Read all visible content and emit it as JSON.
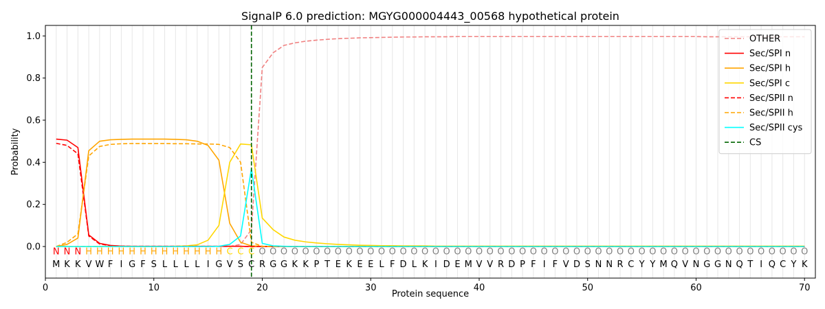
{
  "chart_data": {
    "type": "line",
    "title": "SignalP 6.0 prediction: MGYG000004443_00568 hypothetical protein",
    "xlabel": "Protein sequence",
    "ylabel": "Probability",
    "xlim": [
      0,
      71
    ],
    "ylim": [
      -0.15,
      1.05
    ],
    "xticks": [
      0,
      10,
      20,
      30,
      40,
      50,
      60,
      70
    ],
    "yticks": [
      0.0,
      0.2,
      0.4,
      0.6,
      0.8,
      1.0
    ],
    "grid": "vertical lines at every residue position",
    "legend_position": "top-right",
    "cleavage_site": 19,
    "x": [
      1,
      2,
      3,
      4,
      5,
      6,
      7,
      8,
      9,
      10,
      11,
      12,
      13,
      14,
      15,
      16,
      17,
      18,
      19,
      20,
      21,
      22,
      23,
      24,
      25,
      26,
      27,
      28,
      29,
      30,
      31,
      32,
      33,
      34,
      35,
      36,
      37,
      38,
      39,
      40,
      41,
      42,
      43,
      44,
      45,
      46,
      47,
      48,
      49,
      50,
      51,
      52,
      53,
      54,
      55,
      56,
      57,
      58,
      59,
      60,
      61,
      62,
      63,
      64,
      65,
      66,
      67,
      68,
      69,
      70
    ],
    "sequence": [
      "M",
      "K",
      "K",
      "V",
      "W",
      "F",
      "I",
      "G",
      "F",
      "S",
      "L",
      "L",
      "L",
      "L",
      "I",
      "G",
      "V",
      "S",
      "C",
      "R",
      "G",
      "G",
      "K",
      "K",
      "P",
      "T",
      "E",
      "K",
      "E",
      "E",
      "L",
      "F",
      "D",
      "L",
      "K",
      "I",
      "D",
      "E",
      "M",
      "V",
      "V",
      "R",
      "D",
      "P",
      "F",
      "I",
      "F",
      "V",
      "D",
      "S",
      "N",
      "N",
      "R",
      "C",
      "Y",
      "Y",
      "M",
      "Q",
      "V",
      "N",
      "G",
      "G",
      "N",
      "Q",
      "T",
      "I",
      "Q",
      "C",
      "Y",
      "K"
    ],
    "region_labels": [
      "N",
      "N",
      "N",
      "H",
      "H",
      "H",
      "H",
      "H",
      "H",
      "H",
      "H",
      "H",
      "H",
      "H",
      "H",
      "H",
      "C",
      "C",
      "C",
      "O",
      "O",
      "O",
      "O",
      "O",
      "O",
      "O",
      "O",
      "O",
      "O",
      "O",
      "O",
      "O",
      "O",
      "O",
      "O",
      "O",
      "O",
      "O",
      "O",
      "O",
      "O",
      "O",
      "O",
      "O",
      "O",
      "O",
      "O",
      "O",
      "O",
      "O",
      "O",
      "O",
      "O",
      "O",
      "O",
      "O",
      "O",
      "O",
      "O",
      "O",
      "O",
      "O",
      "O",
      "O",
      "O",
      "O",
      "O",
      "O",
      "O",
      "O"
    ],
    "region_label_colors": {
      "N": "#ff0000",
      "H": "#ffa500",
      "C": "#ffd700",
      "O": "#808080"
    },
    "series": [
      {
        "name": "OTHER",
        "color": "#f08080",
        "dash": "dashed",
        "values": [
          0.0,
          0.0,
          0.0,
          0.0,
          0.0,
          0.0,
          0.0,
          0.0,
          0.0,
          0.0,
          0.0,
          0.0,
          0.0,
          0.0,
          0.0,
          0.0,
          0.0,
          0.01,
          0.08,
          0.85,
          0.92,
          0.955,
          0.967,
          0.975,
          0.98,
          0.984,
          0.987,
          0.989,
          0.991,
          0.992,
          0.993,
          0.994,
          0.995,
          0.995,
          0.996,
          0.996,
          0.996,
          0.997,
          0.997,
          0.997,
          0.997,
          0.997,
          0.997,
          0.997,
          0.997,
          0.997,
          0.997,
          0.997,
          0.997,
          0.997,
          0.997,
          0.997,
          0.997,
          0.997,
          0.997,
          0.997,
          0.997,
          0.997,
          0.997,
          0.997,
          0.996,
          0.996,
          0.996,
          0.996,
          0.996,
          0.996,
          0.996,
          0.996,
          0.996,
          0.996
        ]
      },
      {
        "name": "Sec/SPI n",
        "color": "#ff0000",
        "dash": "solid",
        "values": [
          0.51,
          0.505,
          0.47,
          0.055,
          0.015,
          0.005,
          0.002,
          0.001,
          0.001,
          0.001,
          0.001,
          0.001,
          0.001,
          0.001,
          0.001,
          0.001,
          0.001,
          0.001,
          0.0,
          0.0,
          0.0,
          0.0,
          0.0,
          0.0,
          0.0,
          0.0,
          0.0,
          0.0,
          0.0,
          0.0,
          0.0,
          0.0,
          0.0,
          0.0,
          0.0,
          0.0,
          0.0,
          0.0,
          0.0,
          0.0,
          0.0,
          0.0,
          0.0,
          0.0,
          0.0,
          0.0,
          0.0,
          0.0,
          0.0,
          0.0,
          0.0,
          0.0,
          0.0,
          0.0,
          0.0,
          0.0,
          0.0,
          0.0,
          0.0,
          0.0,
          0.0,
          0.0,
          0.0,
          0.0,
          0.0,
          0.0,
          0.0,
          0.0,
          0.0,
          0.0
        ]
      },
      {
        "name": "Sec/SPI h",
        "color": "#ffa500",
        "dash": "solid",
        "values": [
          0.0,
          0.01,
          0.04,
          0.455,
          0.5,
          0.507,
          0.509,
          0.51,
          0.51,
          0.51,
          0.51,
          0.509,
          0.507,
          0.5,
          0.48,
          0.41,
          0.11,
          0.02,
          0.003,
          0.001,
          0.0,
          0.0,
          0.0,
          0.0,
          0.0,
          0.0,
          0.0,
          0.0,
          0.0,
          0.0,
          0.0,
          0.0,
          0.0,
          0.0,
          0.0,
          0.0,
          0.0,
          0.0,
          0.0,
          0.0,
          0.0,
          0.0,
          0.0,
          0.0,
          0.0,
          0.0,
          0.0,
          0.0,
          0.0,
          0.0,
          0.0,
          0.0,
          0.0,
          0.0,
          0.0,
          0.0,
          0.0,
          0.0,
          0.0,
          0.0,
          0.0,
          0.0,
          0.0,
          0.0,
          0.0,
          0.0,
          0.0,
          0.0,
          0.0,
          0.0
        ]
      },
      {
        "name": "Sec/SPI c",
        "color": "#ffd700",
        "dash": "solid",
        "values": [
          0.0,
          0.0,
          0.0,
          0.0,
          0.0,
          0.0,
          0.0,
          0.0,
          0.0,
          0.0,
          0.0,
          0.001,
          0.003,
          0.008,
          0.03,
          0.1,
          0.4,
          0.487,
          0.483,
          0.135,
          0.08,
          0.045,
          0.03,
          0.022,
          0.017,
          0.013,
          0.01,
          0.008,
          0.006,
          0.005,
          0.004,
          0.004,
          0.003,
          0.003,
          0.003,
          0.002,
          0.002,
          0.002,
          0.002,
          0.002,
          0.002,
          0.002,
          0.002,
          0.002,
          0.002,
          0.002,
          0.002,
          0.002,
          0.002,
          0.002,
          0.002,
          0.002,
          0.002,
          0.002,
          0.002,
          0.002,
          0.002,
          0.002,
          0.002,
          0.002,
          0.002,
          0.002,
          0.002,
          0.002,
          0.002,
          0.002,
          0.002,
          0.002,
          0.002,
          0.002
        ]
      },
      {
        "name": "Sec/SPII n",
        "color": "#ff0000",
        "dash": "dashed",
        "values": [
          0.49,
          0.48,
          0.44,
          0.05,
          0.012,
          0.004,
          0.002,
          0.001,
          0.001,
          0.001,
          0.001,
          0.001,
          0.001,
          0.001,
          0.001,
          0.001,
          0.001,
          0.001,
          0.0,
          0.0,
          0.0,
          0.0,
          0.0,
          0.0,
          0.0,
          0.0,
          0.0,
          0.0,
          0.0,
          0.0,
          0.0,
          0.0,
          0.0,
          0.0,
          0.0,
          0.0,
          0.0,
          0.0,
          0.0,
          0.0,
          0.0,
          0.0,
          0.0,
          0.0,
          0.0,
          0.0,
          0.0,
          0.0,
          0.0,
          0.0,
          0.0,
          0.0,
          0.0,
          0.0,
          0.0,
          0.0,
          0.0,
          0.0,
          0.0,
          0.0,
          0.0,
          0.0,
          0.0,
          0.0,
          0.0,
          0.0,
          0.0,
          0.0,
          0.0,
          0.0
        ]
      },
      {
        "name": "Sec/SPII h",
        "color": "#ffa500",
        "dash": "dashed",
        "values": [
          0.0,
          0.02,
          0.06,
          0.43,
          0.475,
          0.485,
          0.488,
          0.489,
          0.489,
          0.489,
          0.489,
          0.488,
          0.488,
          0.487,
          0.487,
          0.485,
          0.47,
          0.4,
          0.02,
          0.001,
          0.0,
          0.0,
          0.0,
          0.0,
          0.0,
          0.0,
          0.0,
          0.0,
          0.0,
          0.0,
          0.0,
          0.0,
          0.0,
          0.0,
          0.0,
          0.0,
          0.0,
          0.0,
          0.0,
          0.0,
          0.0,
          0.0,
          0.0,
          0.0,
          0.0,
          0.0,
          0.0,
          0.0,
          0.0,
          0.0,
          0.0,
          0.0,
          0.0,
          0.0,
          0.0,
          0.0,
          0.0,
          0.0,
          0.0,
          0.0,
          0.0,
          0.0,
          0.0,
          0.0,
          0.0,
          0.0,
          0.0,
          0.0,
          0.0,
          0.0
        ]
      },
      {
        "name": "Sec/SPII cys",
        "color": "#00ffff",
        "dash": "solid",
        "values": [
          0.0,
          0.0,
          0.0,
          0.0,
          0.0,
          0.0,
          0.0,
          0.0,
          0.0,
          0.0,
          0.0,
          0.0,
          0.0,
          0.0,
          0.0,
          0.001,
          0.01,
          0.05,
          0.37,
          0.015,
          0.003,
          0.001,
          0.0,
          0.0,
          0.0,
          0.0,
          0.0,
          0.0,
          0.0,
          0.0,
          0.0,
          0.0,
          0.0,
          0.0,
          0.0,
          0.0,
          0.0,
          0.0,
          0.0,
          0.0,
          0.0,
          0.0,
          0.0,
          0.0,
          0.0,
          0.0,
          0.0,
          0.0,
          0.0,
          0.0,
          0.0,
          0.0,
          0.0,
          0.0,
          0.0,
          0.0,
          0.0,
          0.0,
          0.0,
          0.0,
          0.0,
          0.0,
          0.0,
          0.0,
          0.0,
          0.0,
          0.0,
          0.0,
          0.0,
          0.0
        ]
      }
    ],
    "legend": [
      {
        "label": "OTHER",
        "color": "#f08080",
        "dash": "dashed"
      },
      {
        "label": "Sec/SPI n",
        "color": "#ff0000",
        "dash": "solid"
      },
      {
        "label": "Sec/SPI h",
        "color": "#ffa500",
        "dash": "solid"
      },
      {
        "label": "Sec/SPI c",
        "color": "#ffd700",
        "dash": "solid"
      },
      {
        "label": "Sec/SPII n",
        "color": "#ff0000",
        "dash": "dashed"
      },
      {
        "label": "Sec/SPII h",
        "color": "#ffa500",
        "dash": "dashed"
      },
      {
        "label": "Sec/SPII cys",
        "color": "#00ffff",
        "dash": "solid"
      },
      {
        "label": "CS",
        "color": "#006400",
        "dash": "dashed"
      }
    ]
  }
}
